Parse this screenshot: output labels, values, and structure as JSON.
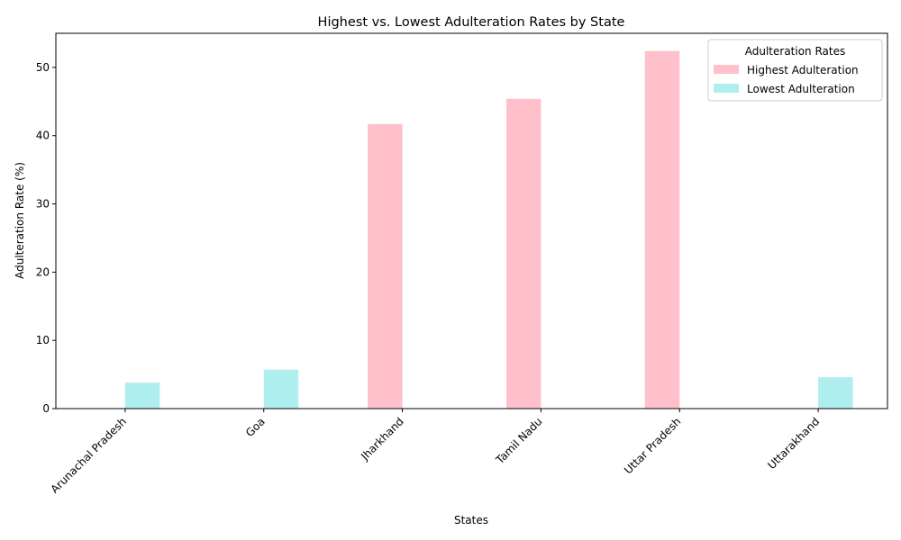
{
  "chart_data": {
    "type": "bar",
    "title": "Highest vs. Lowest Adulteration Rates by State",
    "xlabel": "States",
    "ylabel": "Adulteration Rate (%)",
    "categories": [
      "Arunachal Pradesh",
      "Goa",
      "Jharkhand",
      "Tamil Nadu",
      "Uttar Pradesh",
      "Uttarakhand"
    ],
    "series": [
      {
        "name": "Highest Adulteration",
        "color": "#ffc0cb",
        "values": [
          null,
          null,
          41.7,
          45.4,
          52.4,
          null
        ]
      },
      {
        "name": "Lowest Adulteration",
        "color": "#afeeee",
        "values": [
          3.8,
          5.7,
          null,
          null,
          null,
          4.6
        ]
      }
    ],
    "ylim": [
      0,
      55
    ],
    "yticks": [
      0,
      10,
      20,
      30,
      40,
      50
    ],
    "legend": {
      "title": "Adulteration Rates",
      "position": "top-right"
    },
    "grid": false
  }
}
